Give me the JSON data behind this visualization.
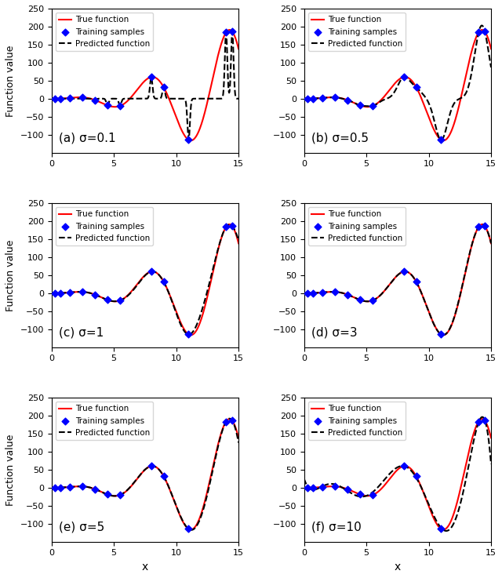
{
  "sigmas": [
    0.1,
    0.5,
    1,
    3,
    5,
    10
  ],
  "labels": [
    "(a)",
    "(b)",
    "(c)",
    "(d)",
    "(e)",
    "(f)"
  ],
  "sigma_labels": [
    "0.1",
    "0.5",
    "1",
    "3",
    "5",
    "10"
  ],
  "xlim": [
    0,
    15
  ],
  "ylim": [
    -150,
    250
  ],
  "xticks": [
    0,
    5,
    10,
    15
  ],
  "yticks": [
    -100,
    -50,
    0,
    50,
    100,
    150,
    200,
    250
  ],
  "xlabel": "x",
  "ylabel": "Function value",
  "true_color": "#ff0000",
  "pred_color": "#000000",
  "sample_color": "#0000ff",
  "legend_labels": [
    "True function",
    "Training samples",
    "Predicted function"
  ],
  "train_x": [
    0.3,
    0.7,
    1.5,
    2.5,
    3.5,
    4.5,
    5.5,
    8.0,
    9.0,
    11.0,
    14.0,
    14.5
  ],
  "figsize": [
    6.4,
    7.37
  ],
  "dpi": 100
}
